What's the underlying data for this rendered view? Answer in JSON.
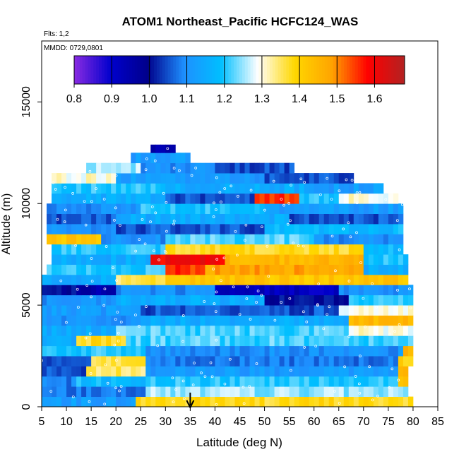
{
  "chart_data": {
    "type": "heatmap",
    "title": "ATOM1 Northeast_Pacific HCFC124_WAS",
    "flights_label": "Flts: 1,2",
    "dates_label": "MMDD: 0729,0801",
    "xlabel": "Latitude (deg N)",
    "ylabel": "Altitude (m)",
    "xlim": [
      5,
      85
    ],
    "ylim": [
      0,
      18000
    ],
    "x_ticks": [
      "5",
      "10",
      "15",
      "20",
      "25",
      "30",
      "35",
      "40",
      "45",
      "50",
      "55",
      "60",
      "65",
      "70",
      "75",
      "80",
      "85"
    ],
    "y_ticks": [
      "0",
      "5000",
      "10000",
      "15000"
    ],
    "colorbar": {
      "range": [
        0.8,
        1.68
      ],
      "tick_values": [
        0.8,
        0.9,
        1.0,
        1.1,
        1.2,
        1.3,
        1.4,
        1.5,
        1.6
      ],
      "tick_labels": [
        "0.8",
        "0.9",
        "1.0",
        "1.1",
        "1.2",
        "1.3",
        "1.4",
        "1.5",
        "1.6"
      ],
      "colors": [
        "#8a2be2",
        "#0000cd",
        "#00008b",
        "#1e90ff",
        "#00bfff",
        "#ffffff",
        "#ffd700",
        "#ffa500",
        "#ff0000",
        "#b22222"
      ]
    },
    "marker_latitude": 35,
    "bands": [
      {
        "alt": [
          0,
          500
        ],
        "lat": [
          5,
          80
        ],
        "base": 1.25,
        "segments": [
          [
            5,
            24,
            1.12
          ],
          [
            24,
            80,
            1.38
          ]
        ]
      },
      {
        "alt": [
          500,
          1000
        ],
        "lat": [
          5,
          79
        ],
        "base": 1.15,
        "segments": [
          [
            5,
            26,
            1.08
          ],
          [
            26,
            79,
            1.25
          ]
        ]
      },
      {
        "alt": [
          1000,
          1500
        ],
        "lat": [
          5,
          79
        ],
        "base": 1.2,
        "segments": [
          [
            5,
            12,
            1.08
          ],
          [
            12,
            26,
            1.18
          ],
          [
            26,
            79,
            1.2
          ],
          [
            77,
            79,
            1.45
          ]
        ]
      },
      {
        "alt": [
          1500,
          2000
        ],
        "lat": [
          5,
          79
        ],
        "base": 1.1,
        "segments": [
          [
            5,
            14,
            1.05
          ],
          [
            14,
            26,
            1.35
          ],
          [
            26,
            79,
            1.12
          ],
          [
            77,
            79,
            1.45
          ]
        ]
      },
      {
        "alt": [
          2000,
          2500
        ],
        "lat": [
          5,
          80
        ],
        "base": 1.1,
        "segments": [
          [
            5,
            15,
            1.05
          ],
          [
            15,
            26,
            1.35
          ],
          [
            26,
            80,
            1.08
          ],
          [
            77,
            80,
            1.4
          ]
        ]
      },
      {
        "alt": [
          2500,
          3000
        ],
        "lat": [
          5,
          80
        ],
        "base": 1.15,
        "segments": [
          [
            5,
            26,
            1.2
          ],
          [
            26,
            80,
            1.1
          ],
          [
            78,
            80,
            1.45
          ]
        ]
      },
      {
        "alt": [
          3000,
          3500
        ],
        "lat": [
          5,
          80
        ],
        "base": 1.2,
        "segments": [
          [
            5,
            12,
            1.15
          ],
          [
            12,
            22,
            1.38
          ],
          [
            22,
            80,
            1.22
          ]
        ]
      },
      {
        "alt": [
          3500,
          4000
        ],
        "lat": [
          5,
          80
        ],
        "base": 1.2,
        "segments": [
          [
            5,
            20,
            1.15
          ],
          [
            20,
            80,
            1.22
          ],
          [
            67,
            80,
            1.3
          ]
        ]
      },
      {
        "alt": [
          4000,
          4500
        ],
        "lat": [
          5,
          80
        ],
        "base": 1.15,
        "segments": [
          [
            5,
            25,
            1.1
          ],
          [
            25,
            67,
            1.15
          ],
          [
            67,
            80,
            1.45
          ]
        ]
      },
      {
        "alt": [
          4500,
          5000
        ],
        "lat": [
          5,
          80
        ],
        "base": 1.1,
        "segments": [
          [
            5,
            25,
            1.12
          ],
          [
            25,
            65,
            1.05
          ],
          [
            65,
            80,
            1.3
          ]
        ]
      },
      {
        "alt": [
          5000,
          5500
        ],
        "lat": [
          5,
          80
        ],
        "base": 1.15,
        "segments": [
          [
            5,
            20,
            1.1
          ],
          [
            20,
            50,
            1.15
          ],
          [
            50,
            67,
            1.0
          ],
          [
            67,
            80,
            1.2
          ]
        ]
      },
      {
        "alt": [
          5500,
          6000
        ],
        "lat": [
          5,
          80
        ],
        "base": 1.05,
        "segments": [
          [
            5,
            12,
            1.0
          ],
          [
            12,
            20,
            0.95
          ],
          [
            20,
            40,
            1.1
          ],
          [
            40,
            65,
            0.92
          ],
          [
            65,
            80,
            1.1
          ]
        ]
      },
      {
        "alt": [
          6000,
          6500
        ],
        "lat": [
          5,
          79
        ],
        "base": 1.3,
        "segments": [
          [
            5,
            20,
            1.15
          ],
          [
            20,
            30,
            1.35
          ],
          [
            30,
            79,
            1.42
          ]
        ]
      },
      {
        "alt": [
          6500,
          7000
        ],
        "lat": [
          6,
          79
        ],
        "base": 1.2,
        "segments": [
          [
            6,
            30,
            1.2
          ],
          [
            30,
            38,
            1.55
          ],
          [
            38,
            70,
            1.48
          ],
          [
            70,
            79,
            1.15
          ]
        ]
      },
      {
        "alt": [
          7000,
          7500
        ],
        "lat": [
          7,
          79
        ],
        "base": 1.2,
        "segments": [
          [
            7,
            27,
            1.15
          ],
          [
            27,
            42,
            1.6
          ],
          [
            42,
            70,
            1.45
          ],
          [
            70,
            79,
            1.2
          ]
        ]
      },
      {
        "alt": [
          7500,
          8000
        ],
        "lat": [
          7,
          78
        ],
        "base": 1.2,
        "segments": [
          [
            7,
            30,
            1.2
          ],
          [
            30,
            70,
            1.38
          ],
          [
            70,
            78,
            1.18
          ]
        ]
      },
      {
        "alt": [
          8000,
          8500
        ],
        "lat": [
          6,
          78
        ],
        "base": 1.2,
        "segments": [
          [
            6,
            17,
            1.42
          ],
          [
            17,
            30,
            1.1
          ],
          [
            30,
            60,
            1.22
          ],
          [
            60,
            78,
            1.1
          ]
        ]
      },
      {
        "alt": [
          8500,
          9000
        ],
        "lat": [
          6,
          78
        ],
        "base": 1.15,
        "segments": [
          [
            6,
            20,
            1.1
          ],
          [
            20,
            50,
            1.05
          ],
          [
            50,
            78,
            1.18
          ]
        ]
      },
      {
        "alt": [
          9000,
          9500
        ],
        "lat": [
          6,
          78
        ],
        "base": 1.1,
        "segments": [
          [
            6,
            20,
            1.05
          ],
          [
            20,
            55,
            1.15
          ],
          [
            55,
            78,
            1.05
          ]
        ]
      },
      {
        "alt": [
          9500,
          10000
        ],
        "lat": [
          6,
          78
        ],
        "base": 1.15,
        "segments": [
          [
            6,
            25,
            1.1
          ],
          [
            25,
            50,
            1.2
          ],
          [
            50,
            78,
            1.12
          ]
        ]
      },
      {
        "alt": [
          10000,
          10500
        ],
        "lat": [
          7,
          77
        ],
        "base": 1.15,
        "segments": [
          [
            7,
            30,
            1.15
          ],
          [
            30,
            48,
            1.05
          ],
          [
            48,
            57,
            1.55
          ],
          [
            57,
            65,
            1.2
          ],
          [
            65,
            77,
            1.3
          ]
        ]
      },
      {
        "alt": [
          10500,
          11000
        ],
        "lat": [
          7,
          74
        ],
        "base": 1.15,
        "segments": [
          [
            7,
            30,
            1.2
          ],
          [
            30,
            60,
            1.15
          ],
          [
            60,
            74,
            1.12
          ]
        ]
      },
      {
        "alt": [
          11000,
          11500
        ],
        "lat": [
          7,
          68
        ],
        "base": 1.15,
        "segments": [
          [
            7,
            20,
            1.3
          ],
          [
            20,
            50,
            1.12
          ],
          [
            50,
            68,
            1.05
          ]
        ]
      },
      {
        "alt": [
          11500,
          12000
        ],
        "lat": [
          14,
          56
        ],
        "base": 1.15,
        "segments": [
          [
            14,
            25,
            1.25
          ],
          [
            25,
            40,
            1.1
          ],
          [
            40,
            56,
            1.05
          ]
        ]
      },
      {
        "alt": [
          12000,
          12500
        ],
        "lat": [
          23,
          35
        ],
        "base": 1.15,
        "segments": [
          [
            23,
            35,
            1.12
          ]
        ]
      },
      {
        "alt": [
          12500,
          12900
        ],
        "lat": [
          27,
          32
        ],
        "base": 1.05,
        "segments": [
          [
            27,
            32,
            0.95
          ]
        ]
      }
    ]
  }
}
